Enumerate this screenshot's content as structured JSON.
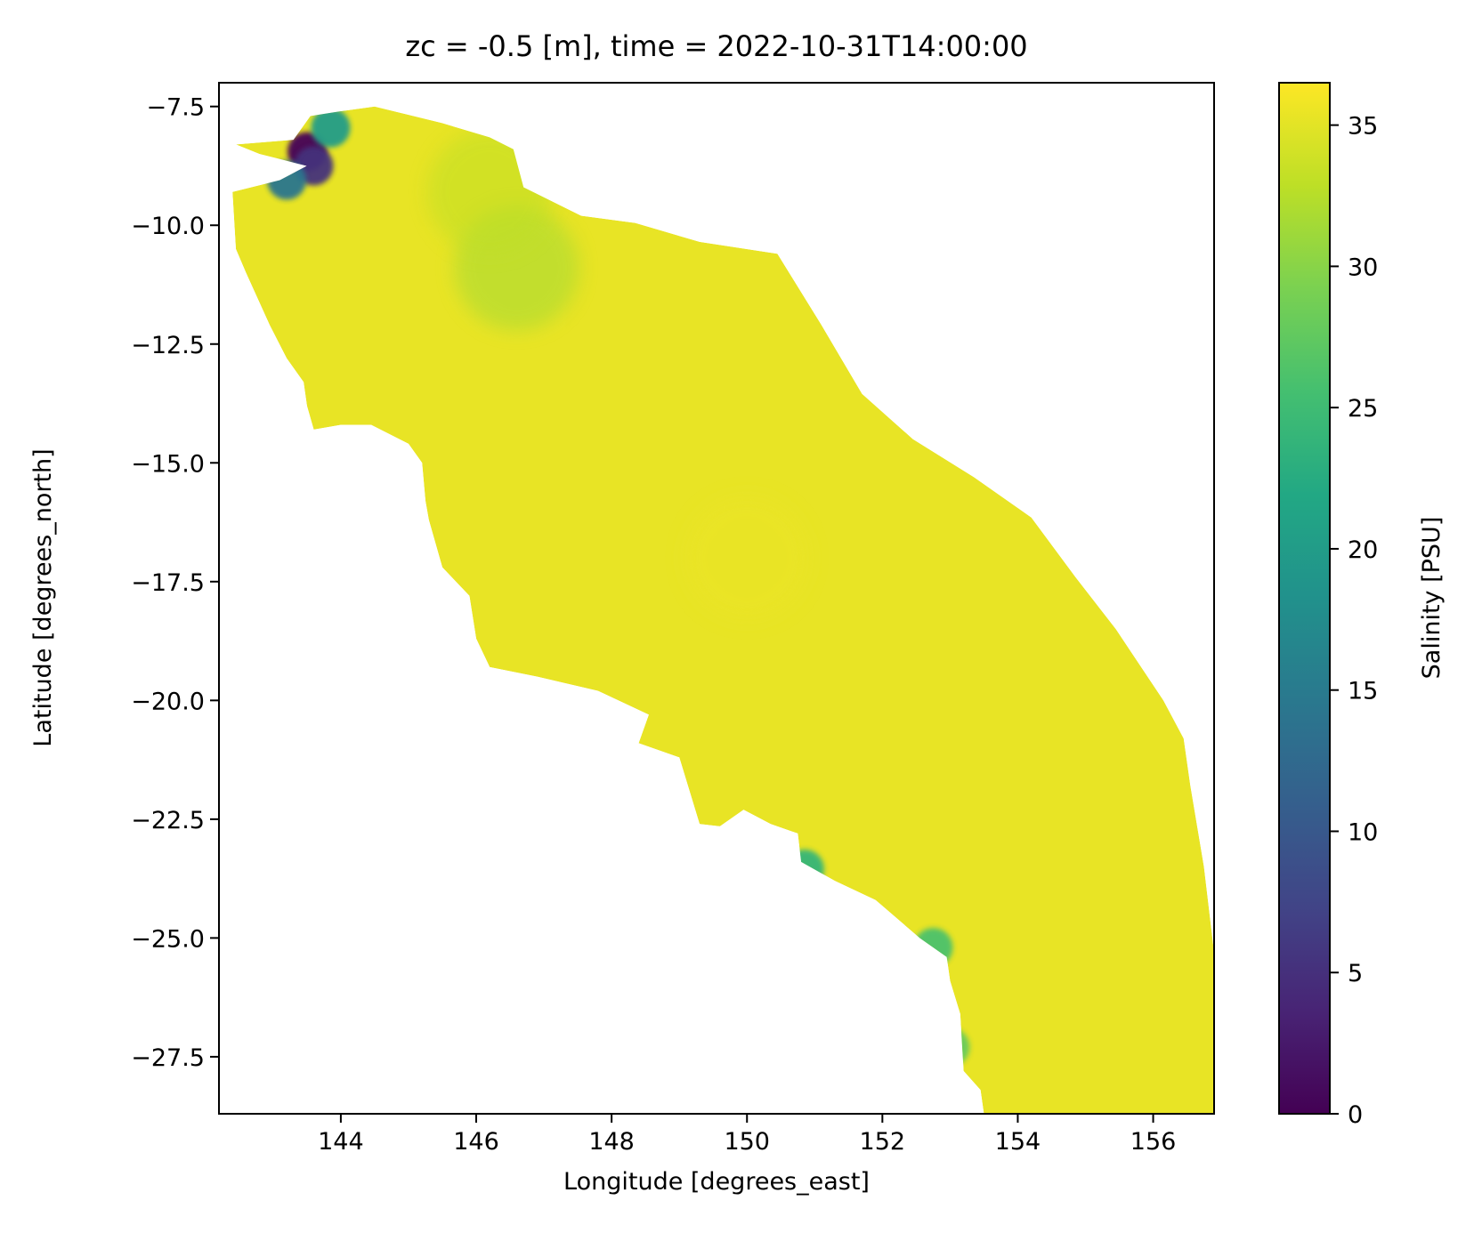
{
  "chart_data": {
    "type": "heatmap",
    "title": "zc = -0.5 [m], time = 2022-10-31T14:00:00",
    "xlabel": "Longitude [degrees_east]",
    "ylabel": "Latitude [degrees_north]",
    "xlim": [
      142.2,
      156.9
    ],
    "ylim": [
      -28.7,
      -7.0
    ],
    "x_ticks": [
      144,
      146,
      148,
      150,
      152,
      154,
      156
    ],
    "y_ticks": [
      -7.5,
      -10.0,
      -12.5,
      -15.0,
      -17.5,
      -20.0,
      -22.5,
      -25.0,
      -27.5
    ],
    "x_tick_labels": [
      "144",
      "146",
      "148",
      "150",
      "152",
      "154",
      "156"
    ],
    "y_tick_labels": [
      "−7.5",
      "−10.0",
      "−12.5",
      "−15.0",
      "−17.5",
      "−20.0",
      "−22.5",
      "−25.0",
      "−27.5"
    ],
    "colorbar": {
      "label": "Salinity [PSU]",
      "range": [
        0,
        36.5
      ],
      "ticks": [
        0,
        5,
        10,
        15,
        20,
        25,
        30,
        35
      ],
      "tick_labels": [
        "0",
        "5",
        "10",
        "15",
        "20",
        "25",
        "30",
        "35"
      ],
      "colormap": "viridis"
    },
    "domain_outline": [
      [
        142.45,
        -8.3
      ],
      [
        143.3,
        -8.2
      ],
      [
        143.55,
        -7.7
      ],
      [
        144.0,
        -7.6
      ],
      [
        144.5,
        -7.5
      ],
      [
        145.5,
        -7.85
      ],
      [
        146.2,
        -8.15
      ],
      [
        146.55,
        -8.4
      ],
      [
        146.7,
        -9.2
      ],
      [
        147.55,
        -9.8
      ],
      [
        148.35,
        -9.95
      ],
      [
        149.3,
        -10.35
      ],
      [
        150.45,
        -10.6
      ],
      [
        151.1,
        -12.1
      ],
      [
        151.7,
        -13.55
      ],
      [
        152.45,
        -14.5
      ],
      [
        153.35,
        -15.3
      ],
      [
        154.2,
        -16.15
      ],
      [
        154.85,
        -17.4
      ],
      [
        155.45,
        -18.5
      ],
      [
        156.15,
        -20.0
      ],
      [
        156.45,
        -20.8
      ],
      [
        156.55,
        -21.8
      ],
      [
        156.75,
        -23.5
      ],
      [
        156.9,
        -25.3
      ],
      [
        156.9,
        -28.7
      ],
      [
        153.5,
        -28.7
      ],
      [
        153.45,
        -28.2
      ],
      [
        153.2,
        -27.8
      ],
      [
        153.15,
        -26.6
      ],
      [
        153.0,
        -25.9
      ],
      [
        152.95,
        -25.4
      ],
      [
        152.55,
        -25.0
      ],
      [
        151.9,
        -24.2
      ],
      [
        151.3,
        -23.8
      ],
      [
        150.8,
        -23.4
      ],
      [
        150.75,
        -22.8
      ],
      [
        150.35,
        -22.6
      ],
      [
        149.95,
        -22.3
      ],
      [
        149.6,
        -22.65
      ],
      [
        149.3,
        -22.6
      ],
      [
        149.0,
        -21.2
      ],
      [
        148.4,
        -20.9
      ],
      [
        148.55,
        -20.3
      ],
      [
        147.8,
        -19.8
      ],
      [
        146.9,
        -19.5
      ],
      [
        146.2,
        -19.3
      ],
      [
        146.0,
        -18.7
      ],
      [
        145.9,
        -17.8
      ],
      [
        145.5,
        -17.2
      ],
      [
        145.3,
        -16.2
      ],
      [
        145.25,
        -15.8
      ],
      [
        145.2,
        -15.0
      ],
      [
        145.0,
        -14.6
      ],
      [
        144.45,
        -14.2
      ],
      [
        144.0,
        -14.2
      ],
      [
        143.6,
        -14.3
      ],
      [
        143.5,
        -13.8
      ],
      [
        143.45,
        -13.3
      ],
      [
        143.2,
        -12.8
      ],
      [
        142.95,
        -12.1
      ],
      [
        142.6,
        -11.0
      ],
      [
        142.45,
        -10.5
      ],
      [
        142.4,
        -9.3
      ],
      [
        143.1,
        -9.05
      ],
      [
        143.5,
        -8.75
      ],
      [
        142.8,
        -8.5
      ]
    ],
    "features": [
      {
        "lon": 143.5,
        "lat": -8.45,
        "salinity": 0.5
      },
      {
        "lon": 143.6,
        "lat": -8.75,
        "salinity": 5
      },
      {
        "lon": 143.2,
        "lat": -9.05,
        "salinity": 14
      },
      {
        "lon": 143.85,
        "lat": -7.95,
        "salinity": 20
      },
      {
        "lon": 146.6,
        "lat": -10.9,
        "salinity": 31.5
      },
      {
        "lon": 146.2,
        "lat": -9.3,
        "salinity": 33
      },
      {
        "lon": 150.85,
        "lat": -23.55,
        "salinity": 24
      },
      {
        "lon": 152.75,
        "lat": -25.2,
        "salinity": 26
      },
      {
        "lon": 153.0,
        "lat": -27.3,
        "salinity": 28
      },
      {
        "lon": 150.0,
        "lat": -17.0,
        "salinity": 35.5
      }
    ]
  }
}
